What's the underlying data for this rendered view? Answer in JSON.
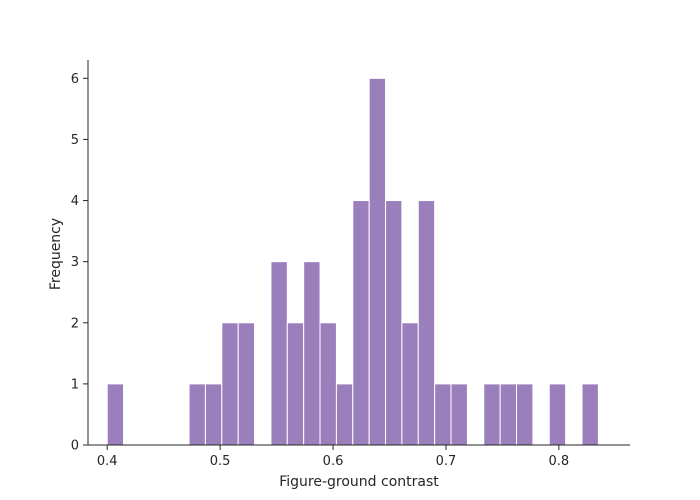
{
  "chart_data": {
    "type": "bar",
    "subtype": "histogram",
    "title": "",
    "xlabel": "Figure-ground contrast",
    "ylabel": "Frequency",
    "xlim": [
      0.383,
      0.863
    ],
    "ylim": [
      0,
      6.3
    ],
    "bin_width": 0.0145,
    "bin_start": 0.4,
    "x_ticks": [
      {
        "value": 0.4,
        "label": "0.4"
      },
      {
        "value": 0.5,
        "label": "0.5"
      },
      {
        "value": 0.6,
        "label": "0.6"
      },
      {
        "value": 0.7,
        "label": "0.7"
      },
      {
        "value": 0.8,
        "label": "0.8"
      }
    ],
    "y_ticks": [
      {
        "value": 0,
        "label": "0"
      },
      {
        "value": 1,
        "label": "1"
      },
      {
        "value": 2,
        "label": "2"
      },
      {
        "value": 3,
        "label": "3"
      },
      {
        "value": 4,
        "label": "4"
      },
      {
        "value": 5,
        "label": "5"
      },
      {
        "value": 6,
        "label": "6"
      }
    ],
    "values": [
      1,
      0,
      0,
      0,
      0,
      1,
      1,
      2,
      2,
      0,
      3,
      2,
      3,
      2,
      1,
      4,
      6,
      4,
      2,
      4,
      1,
      1,
      0,
      1,
      1,
      1,
      0,
      1,
      0,
      1
    ],
    "bar_color": "#9b7fbc",
    "grid": false,
    "legend": "none"
  }
}
